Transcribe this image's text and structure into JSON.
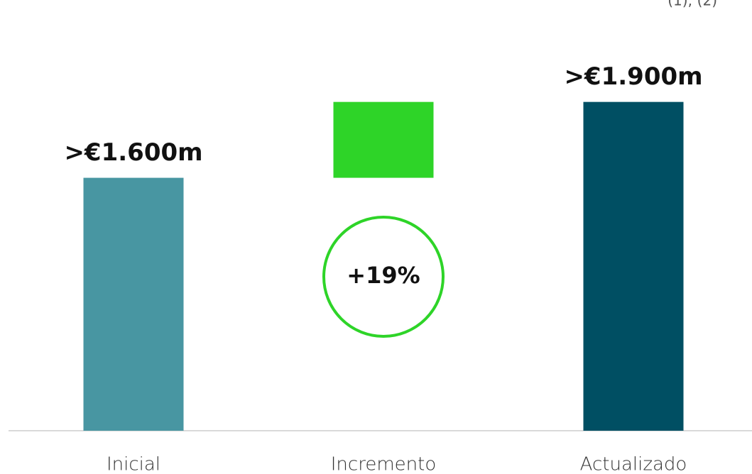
{
  "chart_data": {
    "type": "waterfall",
    "footnote": "(1); (2)",
    "categories": [
      "Inicial",
      "Incremento",
      "Actualizado"
    ],
    "values": [
      1600,
      300,
      1900
    ],
    "value_labels": [
      ">€1.600m",
      null,
      ">€1.900m"
    ],
    "colors": [
      "#4896a2",
      "#2ed428",
      "#004f63"
    ],
    "annotation": "+19%",
    "annotation_color": "#2ed428",
    "ylim": [
      600,
      2000
    ]
  }
}
